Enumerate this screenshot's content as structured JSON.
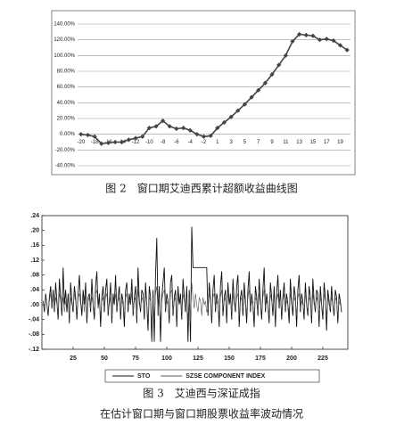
{
  "chart_data": [
    {
      "type": "line",
      "caption": [
        "图 2　窗口期艾迪西累计超额收益曲线图"
      ],
      "categories": [
        "-20",
        null,
        "-18",
        null,
        "-16",
        null,
        "-14",
        null,
        "-12",
        null,
        "-10",
        null,
        "-8",
        null,
        "-6",
        null,
        "-4",
        null,
        "-2",
        null,
        "1",
        null,
        "3",
        null,
        "5",
        null,
        "7",
        null,
        "9",
        null,
        "11",
        null,
        "13",
        null,
        "15",
        null,
        "17",
        null,
        "19",
        null
      ],
      "values": [
        0,
        -1,
        -3,
        -12,
        -11,
        -10,
        -10,
        -7,
        -5,
        -3,
        8,
        10,
        17,
        10,
        7,
        8,
        5,
        0,
        -3,
        -2,
        8,
        15,
        22,
        30,
        38,
        47,
        56,
        65,
        76,
        88,
        100,
        118,
        127,
        126,
        125,
        120,
        121,
        119,
        113,
        107
      ],
      "color": "#444444",
      "marker": "diamond",
      "ylim": [
        -40,
        140
      ],
      "yticks": [
        {
          "value": -40,
          "label": "-40.00%"
        },
        {
          "value": -20,
          "label": "-20.00%"
        },
        {
          "value": 0,
          "label": "0.00%"
        },
        {
          "value": 20,
          "label": "20.00%"
        },
        {
          "value": 40,
          "label": "40.00%"
        },
        {
          "value": 60,
          "label": "60.00%"
        },
        {
          "value": 80,
          "label": "80.00%"
        },
        {
          "value": 100,
          "label": "100.00%"
        },
        {
          "value": 120,
          "label": "120.00%"
        },
        {
          "value": 140,
          "label": "140.00%"
        }
      ],
      "grid": true
    },
    {
      "type": "line",
      "caption": [
        "图 3　艾迪西与深证成指",
        "在估计窗口期与窗口期股票收益率波动情况"
      ],
      "x": [
        1,
        2,
        3,
        4,
        5,
        6,
        7,
        8,
        9,
        10,
        11,
        12,
        13,
        14,
        15,
        16,
        17,
        18,
        19,
        20,
        21,
        22,
        23,
        24,
        25,
        26,
        27,
        28,
        29,
        30,
        31,
        32,
        33,
        34,
        35,
        36,
        37,
        38,
        39,
        40,
        41,
        42,
        43,
        44,
        45,
        46,
        47,
        48,
        49,
        50,
        51,
        52,
        53,
        54,
        55,
        56,
        57,
        58,
        59,
        60,
        61,
        62,
        63,
        64,
        65,
        66,
        67,
        68,
        69,
        70,
        71,
        72,
        73,
        74,
        75,
        76,
        77,
        78,
        79,
        80,
        81,
        82,
        83,
        84,
        85,
        86,
        87,
        88,
        89,
        90,
        91,
        92,
        93,
        94,
        95,
        96,
        97,
        98,
        99,
        100,
        101,
        102,
        103,
        104,
        105,
        106,
        107,
        108,
        109,
        110,
        111,
        112,
        113,
        114,
        115,
        116,
        117,
        118,
        119,
        120,
        121,
        122,
        123,
        124,
        125,
        126,
        127,
        128,
        129,
        130,
        131,
        132,
        133,
        134,
        135,
        136,
        137,
        138,
        139,
        140,
        141,
        142,
        143,
        144,
        145,
        146,
        147,
        148,
        149,
        150,
        151,
        152,
        153,
        154,
        155,
        156,
        157,
        158,
        159,
        160,
        161,
        162,
        163,
        164,
        165,
        166,
        167,
        168,
        169,
        170,
        171,
        172,
        173,
        174,
        175,
        176,
        177,
        178,
        179,
        180,
        181,
        182,
        183,
        184,
        185,
        186,
        187,
        188,
        189,
        190,
        191,
        192,
        193,
        194,
        195,
        196,
        197,
        198,
        199,
        200,
        201,
        202,
        203,
        204,
        205,
        206,
        207,
        208,
        209,
        210,
        211,
        212,
        213,
        214,
        215,
        216,
        217,
        218,
        219,
        220,
        221,
        222,
        223,
        224,
        225,
        226,
        227,
        228,
        229,
        230,
        231,
        232,
        233,
        234,
        235,
        236,
        237,
        238,
        239,
        240
      ],
      "series": [
        {
          "name": "STO",
          "color": "#111111",
          "values": [
            0.01,
            -0.02,
            0.03,
            0.0,
            -0.03,
            0.02,
            0.05,
            -0.01,
            0.04,
            -0.02,
            0.06,
            0.01,
            -0.04,
            0.07,
            0.02,
            -0.03,
            0.1,
            0.0,
            0.04,
            -0.02,
            0.03,
            -0.05,
            0.06,
            0.01,
            -0.02,
            0.05,
            0.02,
            -0.04,
            0.03,
            0.08,
            0.01,
            -0.03,
            0.04,
            0.0,
            0.06,
            -0.05,
            0.02,
            0.03,
            -0.02,
            0.07,
            0.0,
            -0.04,
            0.05,
            0.09,
            -0.01,
            0.03,
            -0.06,
            0.02,
            0.05,
            -0.02,
            0.04,
            0.07,
            -0.03,
            0.01,
            0.06,
            -0.05,
            0.03,
            0.0,
            0.08,
            -0.02,
            0.02,
            0.05,
            -0.04,
            0.03,
            0.01,
            -0.06,
            0.04,
            0.06,
            -0.02,
            0.03,
            0.0,
            0.07,
            -0.03,
            0.02,
            0.05,
            -0.05,
            0.1,
            0.01,
            -0.02,
            0.04,
            0.03,
            -0.04,
            0.06,
            0.0,
            -0.07,
            0.05,
            0.02,
            -0.1,
            0.04,
            -0.1,
            0.08,
            0.18,
            -0.03,
            0.05,
            -0.1,
            0.02,
            0.06,
            0.1,
            -0.02,
            0.03,
            0.01,
            -0.05,
            0.06,
            0.08,
            -0.03,
            0.02,
            0.04,
            -0.06,
            0.05,
            0.0,
            0.03,
            -0.04,
            0.07,
            0.02,
            -0.02,
            0.05,
            -0.1,
            0.04,
            -0.1,
            0.21,
            0.1,
            0.1,
            0.1,
            0.1,
            0.1,
            0.1,
            0.1,
            0.1,
            0.1,
            0.1,
            0.1,
            0.1,
            -0.03,
            0.06,
            0.02,
            -0.05,
            0.04,
            0.08,
            -0.02,
            0.03,
            0.01,
            -0.06,
            0.05,
            0.09,
            -0.03,
            0.02,
            0.04,
            -0.05,
            0.06,
            0.0,
            0.03,
            -0.04,
            0.07,
            0.01,
            -0.02,
            0.05,
            0.08,
            -0.06,
            0.02,
            0.04,
            -0.03,
            0.06,
            0.01,
            -0.05,
            0.04,
            0.09,
            -0.02,
            0.03,
            0.0,
            -0.06,
            0.05,
            0.02,
            -0.03,
            0.07,
            0.01,
            -0.04,
            0.04,
            0.1,
            -0.02,
            0.03,
            0.0,
            -0.05,
            0.06,
            0.02,
            -0.03,
            0.05,
            -0.06,
            0.03,
            0.08,
            -0.01,
            0.04,
            -0.04,
            0.02,
            0.06,
            -0.02,
            0.03,
            0.0,
            -0.05,
            0.07,
            0.01,
            -0.03,
            0.05,
            0.02,
            -0.06,
            0.04,
            0.08,
            -0.02,
            0.03,
            0.01,
            -0.04,
            0.06,
            0.0,
            -0.03,
            0.05,
            0.02,
            -0.05,
            0.07,
            0.01,
            -0.02,
            0.04,
            0.03,
            -0.06,
            0.05,
            0.0,
            -0.04,
            0.06,
            0.02,
            -0.07,
            0.04,
            0.01,
            -0.02,
            0.05,
            0.0,
            -0.03,
            0.04,
            0.02,
            -0.05,
            0.03,
            0.01,
            -0.02
          ]
        },
        {
          "name": "SZSE COMPONENT INDEX",
          "color": "#555555",
          "values": [
            0.01,
            -0.01,
            0.02,
            0.0,
            -0.02,
            0.01,
            0.03,
            0.0,
            0.02,
            -0.01,
            0.02,
            0.0,
            -0.02,
            0.03,
            0.01,
            -0.01,
            0.02,
            -0.02,
            0.01,
            0.0,
            0.01,
            -0.03,
            0.02,
            0.0,
            -0.01,
            0.03,
            0.01,
            -0.02,
            0.02,
            0.03,
            0.0,
            -0.01,
            0.02,
            -0.02,
            0.03,
            -0.03,
            0.01,
            0.02,
            -0.01,
            0.02,
            0.0,
            -0.02,
            0.03,
            0.04,
            -0.01,
            0.01,
            -0.03,
            0.01,
            0.02,
            -0.01,
            0.02,
            0.03,
            -0.02,
            0.0,
            0.02,
            -0.03,
            0.01,
            0.0,
            0.03,
            -0.01,
            0.01,
            0.02,
            -0.02,
            0.01,
            0.0,
            -0.03,
            0.02,
            0.03,
            -0.01,
            0.01,
            0.0,
            0.03,
            -0.02,
            0.01,
            0.02,
            -0.03,
            0.04,
            0.0,
            -0.01,
            0.02,
            0.01,
            -0.02,
            0.03,
            0.0,
            -0.04,
            0.02,
            0.01,
            -0.05,
            0.02,
            -0.04,
            0.03,
            0.05,
            -0.02,
            0.02,
            -0.05,
            0.01,
            0.03,
            0.04,
            -0.01,
            0.01,
            0.0,
            -0.03,
            0.03,
            0.04,
            -0.02,
            0.01,
            0.02,
            -0.03,
            0.02,
            0.0,
            0.01,
            -0.02,
            0.03,
            0.01,
            -0.01,
            0.02,
            -0.04,
            0.02,
            -0.05,
            0.06,
            0.02,
            -0.01,
            0.03,
            0.0,
            -0.02,
            0.02,
            0.01,
            -0.03,
            0.02,
            0.0,
            0.01,
            -0.02,
            -0.01,
            0.03,
            0.01,
            -0.03,
            0.02,
            0.03,
            -0.01,
            0.01,
            0.0,
            -0.03,
            0.02,
            0.04,
            -0.01,
            0.01,
            0.02,
            -0.02,
            0.03,
            0.0,
            0.01,
            -0.02,
            0.03,
            0.0,
            -0.01,
            0.02,
            0.03,
            -0.03,
            0.01,
            0.02,
            -0.01,
            0.03,
            0.0,
            -0.02,
            0.02,
            0.04,
            -0.01,
            0.01,
            0.0,
            -0.03,
            0.02,
            0.01,
            -0.02,
            0.03,
            0.0,
            -0.02,
            0.02,
            0.04,
            -0.01,
            0.01,
            0.0,
            -0.03,
            0.03,
            0.01,
            -0.01,
            0.02,
            -0.03,
            0.01,
            0.03,
            0.0,
            0.02,
            -0.02,
            0.01,
            0.03,
            -0.01,
            0.01,
            0.0,
            -0.02,
            0.03,
            0.0,
            -0.01,
            0.02,
            0.01,
            -0.03,
            0.02,
            0.03,
            -0.01,
            0.01,
            0.0,
            -0.02,
            0.03,
            0.0,
            -0.02,
            0.02,
            0.01,
            -0.03,
            0.03,
            0.0,
            -0.01,
            0.02,
            0.01,
            -0.03,
            0.02,
            0.0,
            -0.02,
            0.03,
            0.01,
            -0.03,
            0.02,
            0.0,
            -0.01,
            0.02,
            0.0,
            -0.02,
            0.02,
            0.01,
            -0.03,
            0.01,
            0.0,
            -0.01
          ]
        }
      ],
      "xlim": [
        0,
        245
      ],
      "xticks": [
        25,
        50,
        75,
        100,
        125,
        150,
        175,
        200,
        225
      ],
      "ylim": [
        -0.12,
        0.24
      ],
      "yticks": [
        {
          "value": -0.12,
          "label": "-.12"
        },
        {
          "value": -0.08,
          "label": "-.08"
        },
        {
          "value": -0.04,
          "label": "-.04"
        },
        {
          "value": 0,
          "label": ".00"
        },
        {
          "value": 0.04,
          "label": ".04"
        },
        {
          "value": 0.08,
          "label": ".08"
        },
        {
          "value": 0.12,
          "label": ".12"
        },
        {
          "value": 0.16,
          "label": ".16"
        },
        {
          "value": 0.2,
          "label": ".20"
        },
        {
          "value": 0.24,
          "label": ".24"
        }
      ],
      "legend": "bottom"
    }
  ]
}
